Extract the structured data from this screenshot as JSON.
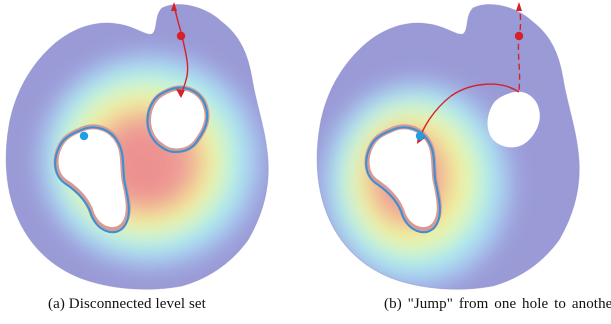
{
  "panels": [
    {
      "id": "a",
      "caption": "(a) Disconnected level set"
    },
    {
      "id": "b",
      "caption": "(b) \"Jump\" from one hole to another"
    }
  ],
  "colors": {
    "heat_far": "#9a9ad6",
    "heat_mid_blue": "#a9c9f2",
    "heat_cyan": "#a6f0ee",
    "heat_yellow": "#f2f59a",
    "heat_orange": "#f3c294",
    "heat_red": "#ee9898",
    "level_curve": "#3b8fd3",
    "path_red": "#d6202a"
  }
}
